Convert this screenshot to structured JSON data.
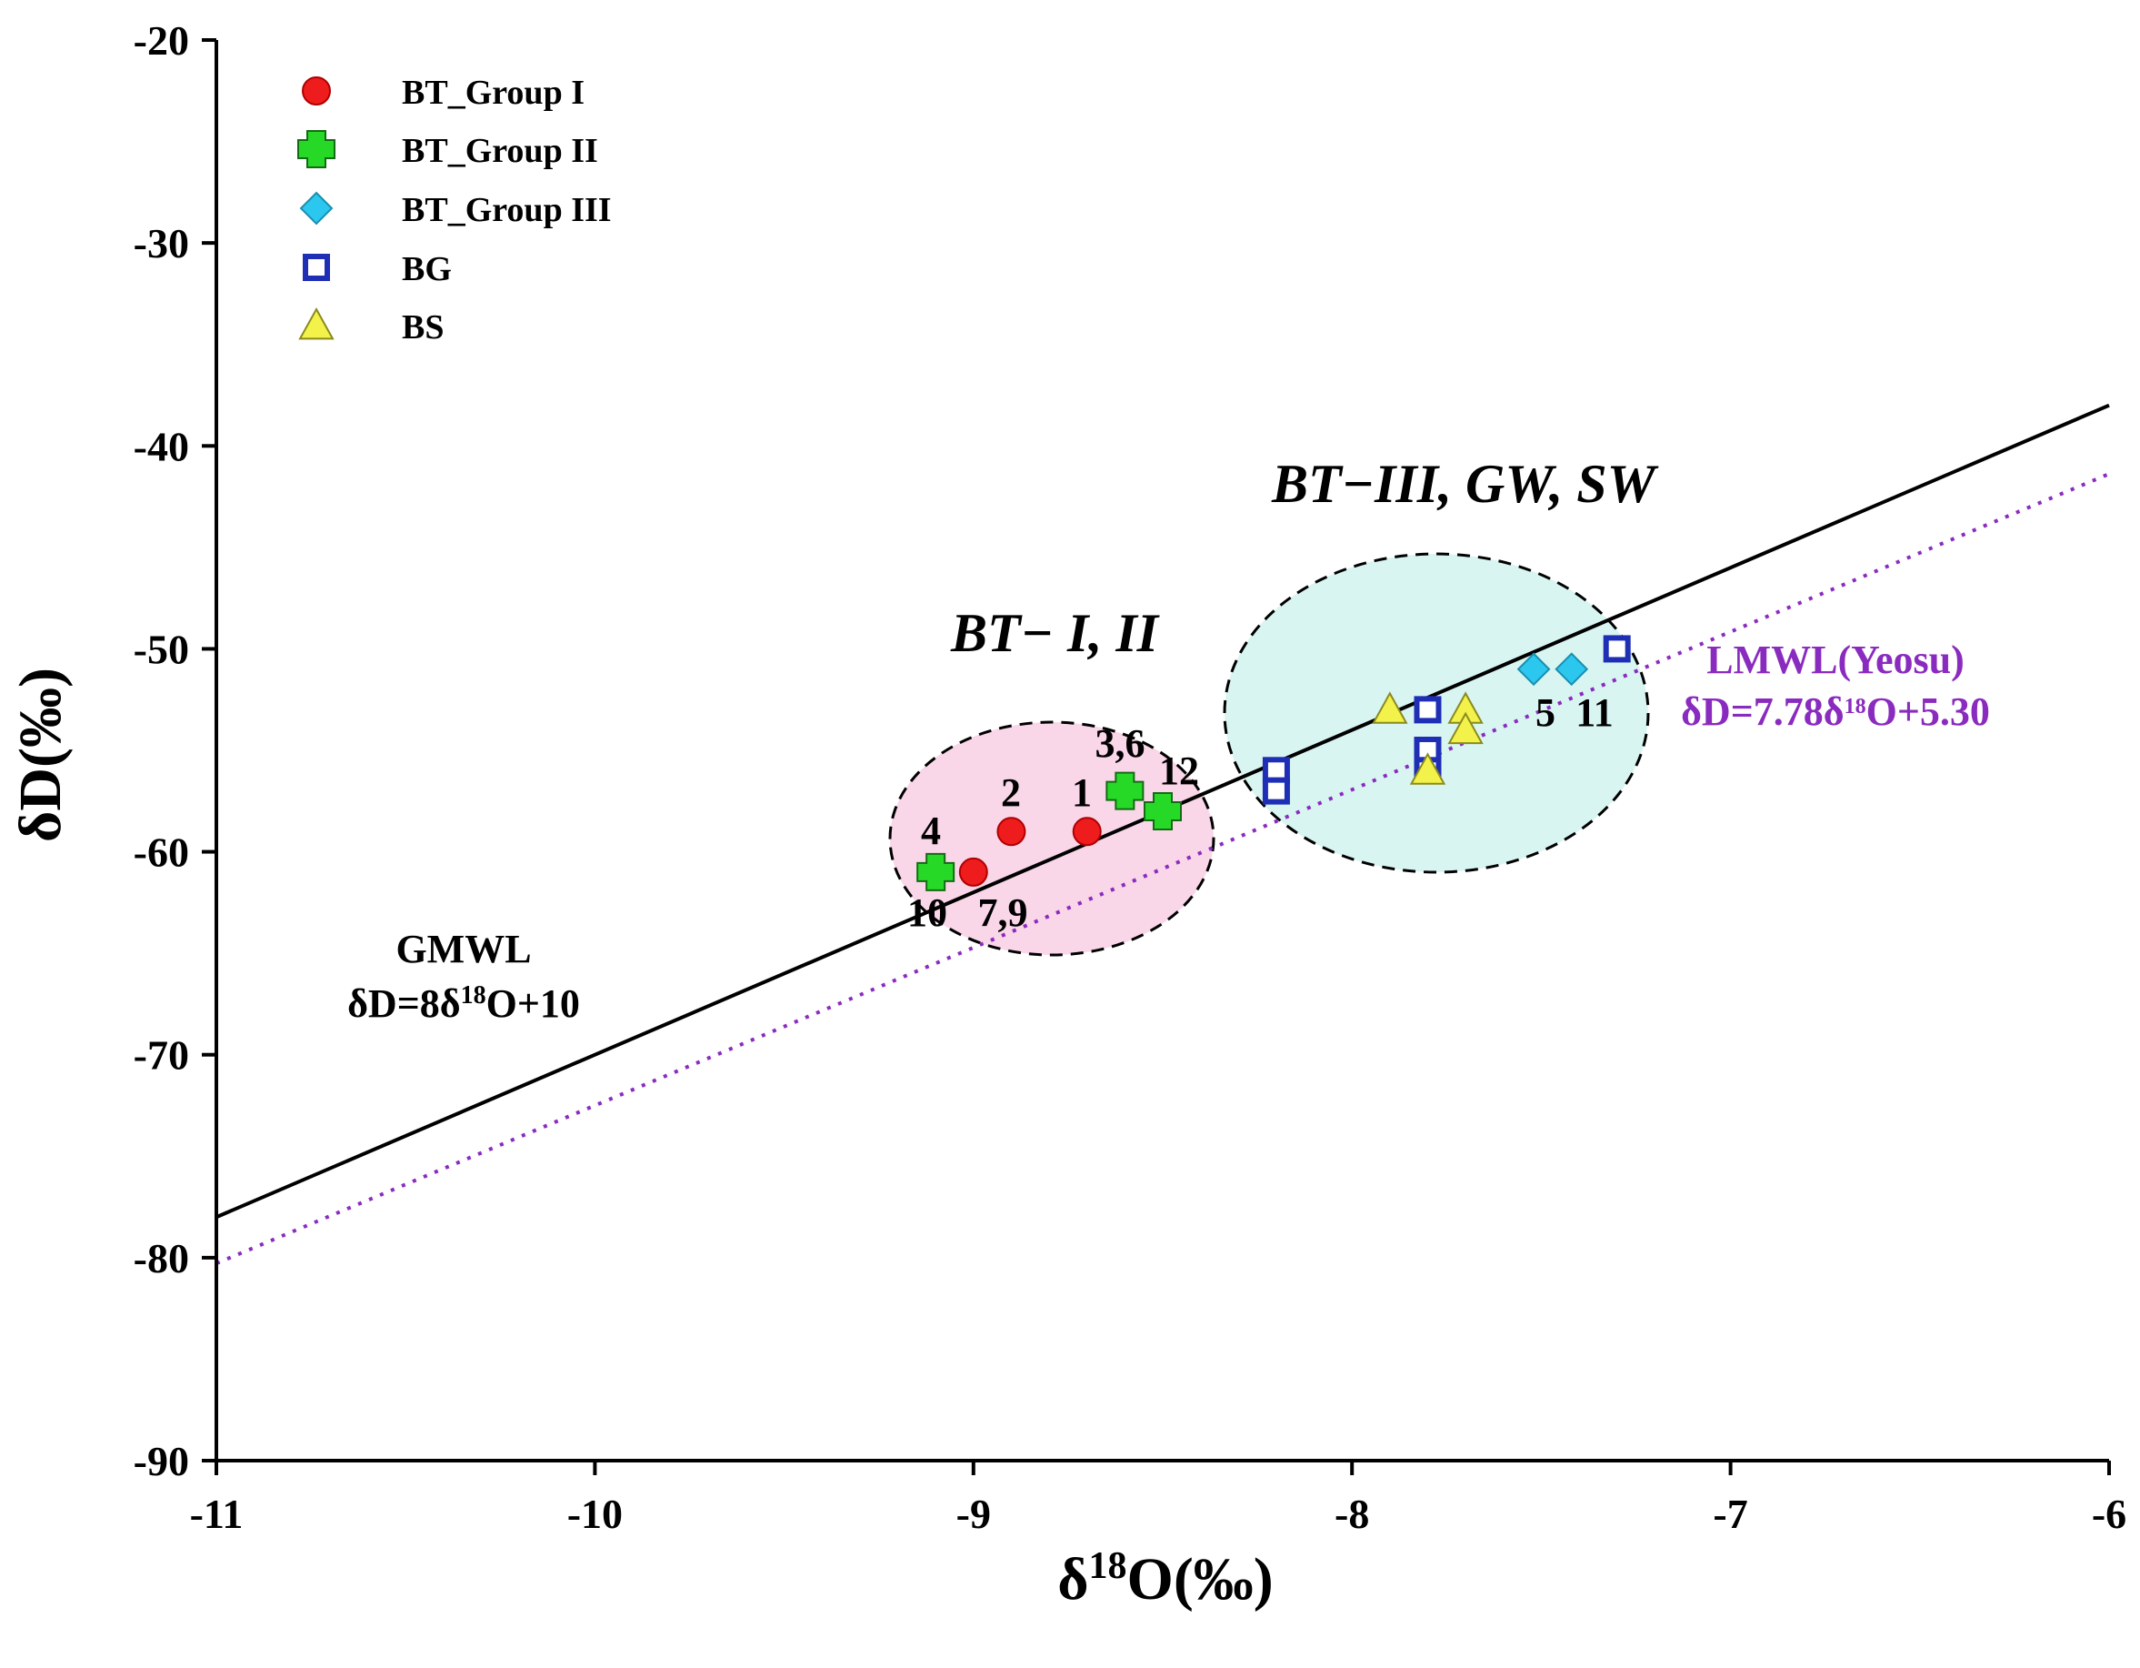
{
  "chart_data": {
    "type": "scatter",
    "xlabel": "δ18O(‰)",
    "ylabel": "δD(‰)",
    "xlim": [
      -11,
      -6
    ],
    "ylim": [
      -90,
      -20
    ],
    "x_ticks": [
      -11,
      -10,
      -9,
      -8,
      -7,
      -6
    ],
    "y_ticks": [
      -90,
      -80,
      -70,
      -60,
      -50,
      -40,
      -30,
      -20
    ],
    "legend_position": "top-left",
    "series": [
      {
        "name": "BT_Group I",
        "marker": "circle",
        "color": "#ee1c1c",
        "edge": "#b00000",
        "points": [
          {
            "x": -8.7,
            "y": -59
          },
          {
            "x": -8.9,
            "y": -59
          },
          {
            "x": -9.0,
            "y": -61
          }
        ]
      },
      {
        "name": "BT_Group II",
        "marker": "plus",
        "color": "#27d927",
        "edge": "#136b13",
        "points": [
          {
            "x": -8.6,
            "y": -57
          },
          {
            "x": -8.5,
            "y": -58
          },
          {
            "x": -9.1,
            "y": -61
          }
        ]
      },
      {
        "name": "BT_Group III",
        "marker": "diamond",
        "color": "#2bc7ef",
        "edge": "#1a8fb0",
        "points": [
          {
            "x": -7.52,
            "y": -51
          },
          {
            "x": -7.42,
            "y": -51
          }
        ]
      },
      {
        "name": "BG",
        "marker": "square",
        "color": "#1f2fb5",
        "edge": "#1f2fb5",
        "points": [
          {
            "x": -7.3,
            "y": -50
          },
          {
            "x": -7.8,
            "y": -53
          },
          {
            "x": -7.8,
            "y": -55
          },
          {
            "x": -7.8,
            "y": -56
          },
          {
            "x": -8.2,
            "y": -56
          },
          {
            "x": -8.2,
            "y": -57
          }
        ]
      },
      {
        "name": "BS",
        "marker": "triangle",
        "color": "#f2f24a",
        "edge": "#8a8a1e",
        "points": [
          {
            "x": -7.9,
            "y": -53
          },
          {
            "x": -7.7,
            "y": -53
          },
          {
            "x": -7.7,
            "y": -54
          },
          {
            "x": -7.8,
            "y": -56
          }
        ]
      }
    ],
    "lines": [
      {
        "name": "GMWL",
        "slope": 8,
        "intercept": 10,
        "style": "solid",
        "color": "#000000",
        "label_name": "GMWL",
        "label_eq_a": "δD=8δ",
        "label_eq_sup": "18",
        "label_eq_b": "O+10"
      },
      {
        "name": "LMWL(Yeosu)",
        "slope": 7.78,
        "intercept": 5.3,
        "style": "dotted",
        "color": "#8a2bbf",
        "label_name": "LMWL(Yeosu)",
        "label_eq_a": "δD=7.78δ",
        "label_eq_sup": "18",
        "label_eq_b": "O+5.30"
      }
    ],
    "point_labels": [
      {
        "text": "1",
        "color": "#e02020"
      },
      {
        "text": "2",
        "color": "#e02020"
      },
      {
        "text": "10",
        "color": "#e02020"
      },
      {
        "text": "7,9",
        "color": "#e02020"
      },
      {
        "text": "3,6",
        "color": "#2e8b3e"
      },
      {
        "text": "12",
        "color": "#2e8b3e"
      },
      {
        "text": "4",
        "color": "#2e8b3e"
      },
      {
        "text": "5",
        "color": "#1e4a4a"
      },
      {
        "text": "11",
        "color": "#1e4a4a"
      }
    ],
    "group_labels": [
      {
        "text": "BT− I, II",
        "color": "#e02020"
      },
      {
        "text": "BT−III, GW, SW",
        "color": "#1f3c8f"
      }
    ]
  }
}
